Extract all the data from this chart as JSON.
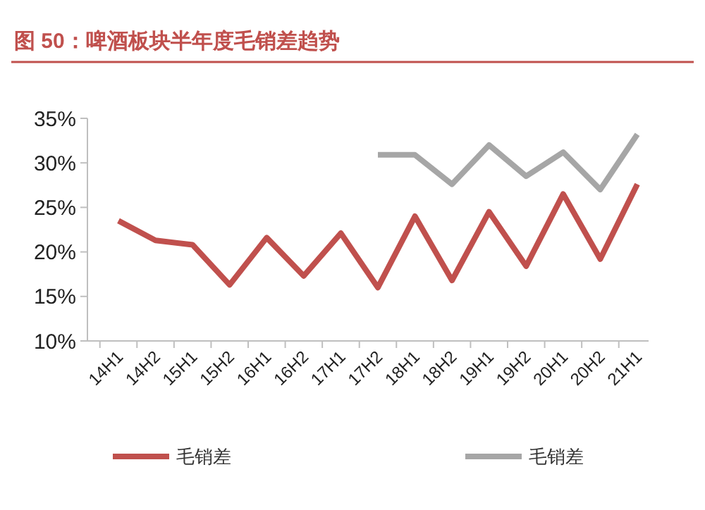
{
  "chart_data": {
    "type": "line",
    "title": "图 50：啤酒板块半年度毛销差趋势",
    "categories": [
      "14H1",
      "14H2",
      "15H1",
      "15H2",
      "16H1",
      "16H2",
      "17H1",
      "17H2",
      "18H1",
      "18H2",
      "19H1",
      "19H2",
      "20H1",
      "20H2",
      "21H1"
    ],
    "series": [
      {
        "name": "毛销差",
        "color": "#c0504d",
        "values": [
          23.5,
          21.3,
          20.8,
          16.3,
          21.6,
          17.3,
          22.1,
          16.0,
          24.0,
          16.8,
          24.5,
          18.4,
          26.5,
          19.2,
          27.6
        ]
      },
      {
        "name": "毛销差",
        "color": "#a6a6a6",
        "values": [
          null,
          null,
          null,
          null,
          null,
          null,
          null,
          30.9,
          30.9,
          27.6,
          32.0,
          28.5,
          31.2,
          27.0,
          33.2
        ]
      }
    ],
    "ylim": [
      10,
      35
    ],
    "yticks": [
      {
        "value": 10,
        "label": "10%"
      },
      {
        "value": 15,
        "label": "15%"
      },
      {
        "value": 20,
        "label": "20%"
      },
      {
        "value": 25,
        "label": "25%"
      },
      {
        "value": 30,
        "label": "30%"
      },
      {
        "value": 35,
        "label": "35%"
      }
    ],
    "grid": false,
    "legend": "bottom",
    "marker": "none",
    "line_style": "solid"
  }
}
